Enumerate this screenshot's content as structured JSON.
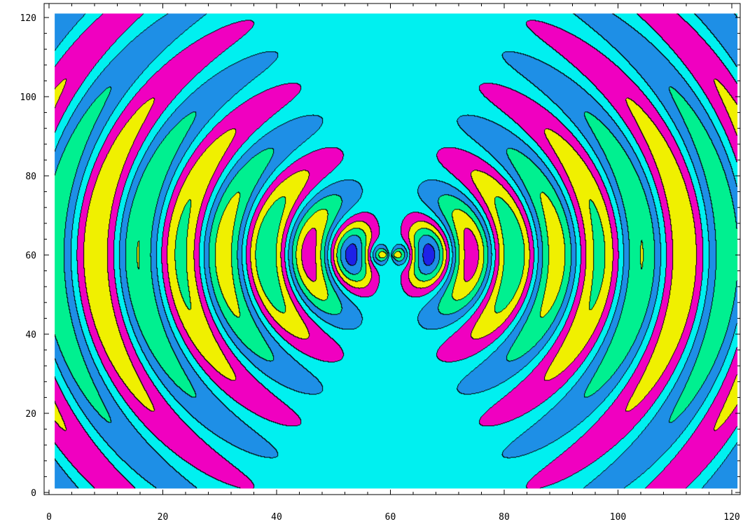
{
  "chart_data": {
    "type": "heatmap",
    "subtype": "contour",
    "title": "",
    "xlabel": "",
    "ylabel": "",
    "xlim": [
      0,
      121
    ],
    "ylim": [
      0,
      121
    ],
    "grid": false,
    "legend": "none",
    "x_ticks": [
      0,
      20,
      40,
      60,
      80,
      100,
      120
    ],
    "y_ticks": [
      0,
      20,
      40,
      60,
      80,
      100,
      120
    ],
    "x_tick_labels": [
      "0",
      "20",
      "40",
      "60",
      "80",
      "100",
      "120"
    ],
    "y_tick_labels": [
      "0",
      "20",
      "40",
      "60",
      "80",
      "100",
      "120"
    ],
    "field_extent": {
      "x": [
        1,
        121
      ],
      "y": [
        1,
        121
      ]
    },
    "source_center": [
      60,
      60
    ],
    "contour_levels": 10,
    "contour_line_color": "#000000",
    "colormap": [
      "#1e22e8",
      "#2b5cf0",
      "#1e8fe6",
      "#00e8f0",
      "#00f090",
      "#10e830",
      "#a8f000",
      "#f0f000",
      "#f09000",
      "#f000c0",
      "#9000f0",
      "#ff0000"
    ],
    "background_color": "#00f0f0"
  }
}
